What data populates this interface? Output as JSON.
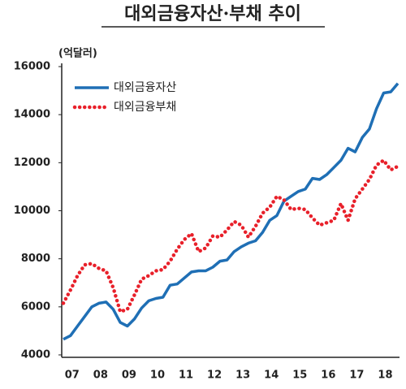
{
  "chart_data": {
    "type": "line",
    "title": "대외금융자산·부채 추이",
    "y_label": "(억달러)",
    "categories": [
      null,
      "07",
      null,
      null,
      null,
      "08",
      null,
      null,
      null,
      "09",
      null,
      null,
      null,
      "10",
      null,
      null,
      null,
      "11",
      null,
      null,
      null,
      "12",
      null,
      null,
      null,
      "13",
      null,
      null,
      null,
      "14",
      null,
      null,
      null,
      "15",
      null,
      null,
      null,
      "16",
      null,
      null,
      null,
      "17",
      null,
      null,
      null,
      "18",
      null,
      null
    ],
    "series": [
      {
        "name": "대외금융자산",
        "color": "#1f6fb5",
        "style": "solid",
        "values": [
          4650,
          4800,
          5200,
          5600,
          6000,
          6150,
          6200,
          5900,
          5350,
          5200,
          5500,
          5950,
          6250,
          6350,
          6400,
          6900,
          6950,
          7200,
          7450,
          7500,
          7500,
          7650,
          7900,
          7950,
          8300,
          8500,
          8650,
          8750,
          9100,
          9600,
          9800,
          10400,
          10600,
          10800,
          10900,
          11350,
          11300,
          11500,
          11800,
          12100,
          12600,
          12450,
          13050,
          13400,
          14250,
          14900,
          14950,
          15300
        ]
      },
      {
        "name": "대외금융부채",
        "color": "#e8202a",
        "style": "dotted",
        "values": [
          6150,
          6700,
          7300,
          7750,
          7800,
          7600,
          7500,
          6800,
          5800,
          5900,
          6500,
          7150,
          7300,
          7500,
          7550,
          7900,
          8400,
          8800,
          9050,
          8300,
          8450,
          8950,
          8900,
          9200,
          9550,
          9400,
          8900,
          9350,
          9900,
          10150,
          10600,
          10450,
          10050,
          10100,
          10050,
          9700,
          9400,
          9500,
          9600,
          10300,
          9600,
          10500,
          10900,
          11300,
          11900,
          12100,
          11700,
          11850
        ]
      }
    ],
    "ylim": [
      4000,
      16000
    ],
    "yticks": [
      4000,
      6000,
      8000,
      10000,
      12000,
      14000,
      16000
    ],
    "grid": false,
    "legend": "top-left"
  }
}
